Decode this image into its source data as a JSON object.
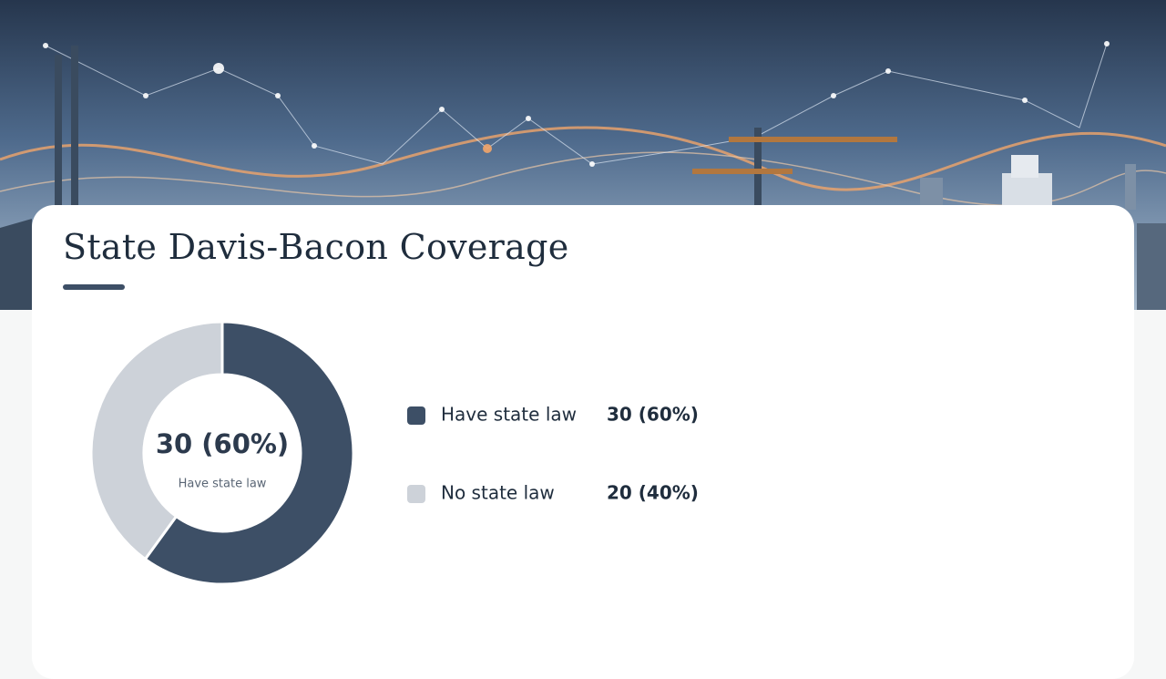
{
  "chart_data": {
    "type": "donut",
    "title": "State Davis-Bacon Coverage",
    "categories": [
      "Have state law",
      "No state law"
    ],
    "values": [
      30,
      20
    ],
    "value_labels": [
      "30 (60%)",
      "20 (40%)"
    ],
    "colors": [
      "#3d4f66",
      "#cdd2d9"
    ]
  }
}
